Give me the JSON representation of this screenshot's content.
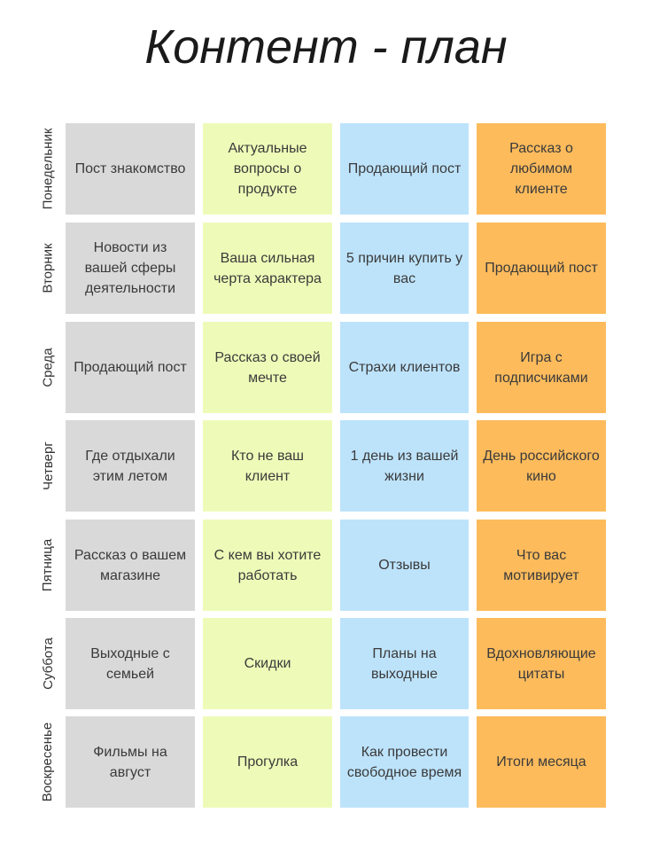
{
  "title": "Контент - план",
  "colors": {
    "col1": "#d9d9d9",
    "col2": "#eefbb8",
    "col3": "#bde3fb",
    "col4": "#fdbb5c"
  },
  "rows": [
    {
      "day": "Понедельник",
      "cells": [
        "Пост знакомство",
        "Актуальные вопросы о продукте",
        "Продающий пост",
        "Рассказ о любимом клиенте"
      ]
    },
    {
      "day": "Вторник",
      "cells": [
        "Новости из вашей сферы деятельности",
        "Ваша сильная черта характера",
        "5 причин купить у вас",
        "Продающий пост"
      ]
    },
    {
      "day": "Среда",
      "cells": [
        "Продающий пост",
        "Рассказ о своей мечте",
        "Страхи клиентов",
        "Игра с подписчиками"
      ]
    },
    {
      "day": "Четверг",
      "cells": [
        "Где отдыхали этим летом",
        "Кто не ваш клиент",
        "1 день из вашей жизни",
        "День российского кино"
      ]
    },
    {
      "day": "Пятница",
      "cells": [
        "Рассказ о вашем магазине",
        "С кем вы хотите работать",
        "Отзывы",
        "Что вас мотивирует"
      ]
    },
    {
      "day": "Суббота",
      "cells": [
        "Выходные с семьей",
        "Скидки",
        "Планы на выходные",
        "Вдохновляющие цитаты"
      ]
    },
    {
      "day": "Воскресенье",
      "cells": [
        "Фильмы на август",
        "Прогулка",
        "Как провести свободное время",
        "Итоги месяца"
      ]
    }
  ]
}
